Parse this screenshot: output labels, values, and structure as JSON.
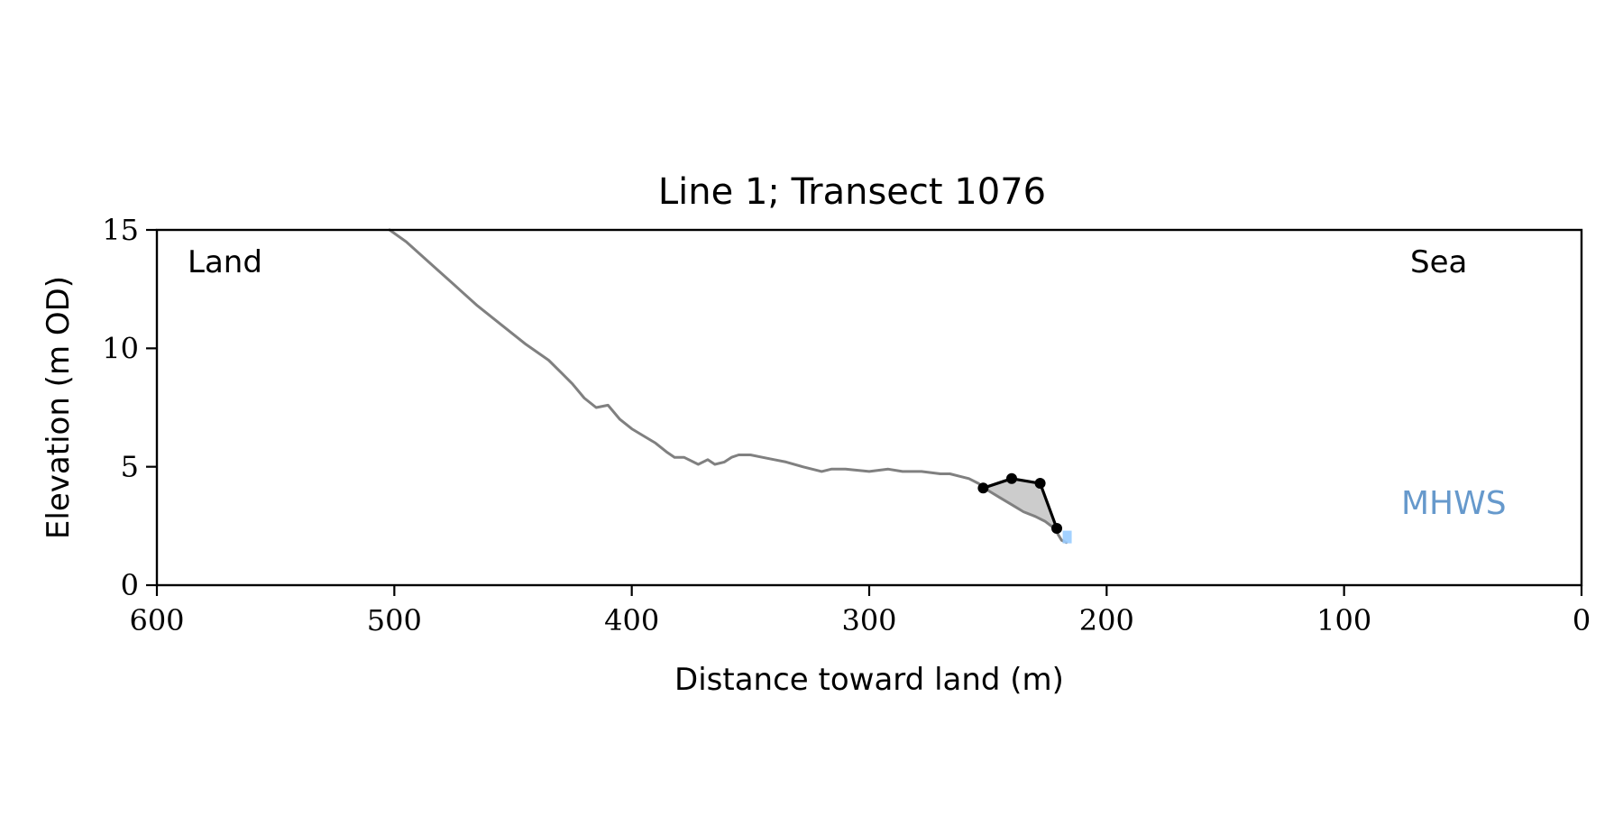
{
  "chart_data": {
    "type": "line",
    "title": "Line 1; Transect 1076",
    "xlabel": "Distance toward land (m)",
    "ylabel": "Elevation (m OD)",
    "xlim": [
      600,
      0
    ],
    "ylim": [
      0,
      15
    ],
    "x_ticks": [
      600,
      500,
      400,
      300,
      200,
      100,
      0
    ],
    "y_ticks": [
      0,
      5,
      10,
      15
    ],
    "grid": false,
    "annotations": {
      "land": "Land",
      "sea": "Sea",
      "mhws": "MHWS"
    },
    "colors": {
      "profile": "#808080",
      "feature": "#000000",
      "fill": "#cccccc",
      "mhws": "#6699cc",
      "water": "#99ccff"
    },
    "series": [
      {
        "role": "profile",
        "x": [
          502,
          495,
          485,
          475,
          465,
          455,
          445,
          435,
          430,
          425,
          420,
          415,
          410,
          405,
          400,
          395,
          390,
          385,
          382,
          378,
          372,
          368,
          365,
          361,
          358,
          355,
          350,
          345,
          340,
          335,
          328,
          320,
          316,
          310,
          300,
          292,
          286,
          278,
          270,
          266,
          262,
          258,
          254,
          250,
          245,
          240,
          235,
          230,
          226,
          222,
          219,
          217
        ],
        "y": [
          15.0,
          14.5,
          13.6,
          12.7,
          11.8,
          11.0,
          10.2,
          9.5,
          9.0,
          8.5,
          7.9,
          7.5,
          7.6,
          7.0,
          6.6,
          6.3,
          6.0,
          5.6,
          5.4,
          5.4,
          5.1,
          5.3,
          5.1,
          5.2,
          5.4,
          5.5,
          5.5,
          5.4,
          5.3,
          5.2,
          5.0,
          4.8,
          4.9,
          4.9,
          4.8,
          4.9,
          4.8,
          4.8,
          4.7,
          4.7,
          4.6,
          4.5,
          4.3,
          4.0,
          3.7,
          3.4,
          3.1,
          2.9,
          2.7,
          2.4,
          1.9,
          1.8
        ]
      },
      {
        "role": "feature",
        "x": [
          252,
          240,
          228,
          221
        ],
        "y": [
          4.1,
          4.5,
          4.3,
          2.4
        ]
      }
    ]
  }
}
